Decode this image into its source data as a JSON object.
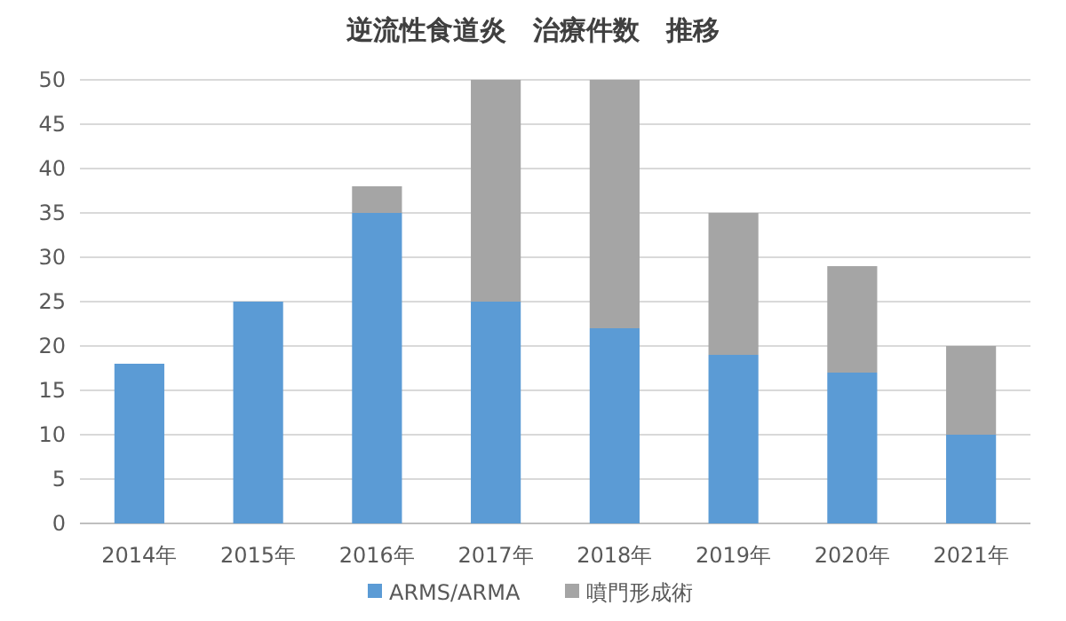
{
  "chart_data": {
    "type": "bar",
    "title": "逆流性食道炎　治療件数　推移",
    "categories": [
      "2014年",
      "2015年",
      "2016年",
      "2017年",
      "2018年",
      "2019年",
      "2020年",
      "2021年"
    ],
    "stacked": true,
    "series": [
      {
        "name": "ARMS/ARMA",
        "color": "#5b9bd5",
        "values": [
          18,
          25,
          35,
          25,
          22,
          19,
          17,
          10
        ]
      },
      {
        "name": "噴門形成術",
        "color": "#a5a5a5",
        "values": [
          0,
          0,
          3,
          25,
          28,
          16,
          12,
          10
        ]
      }
    ],
    "ylim": [
      0,
      50
    ],
    "yticks": [
      0,
      5,
      10,
      15,
      20,
      25,
      30,
      35,
      40,
      45,
      50
    ],
    "grid": "y",
    "legend": "bottom"
  }
}
